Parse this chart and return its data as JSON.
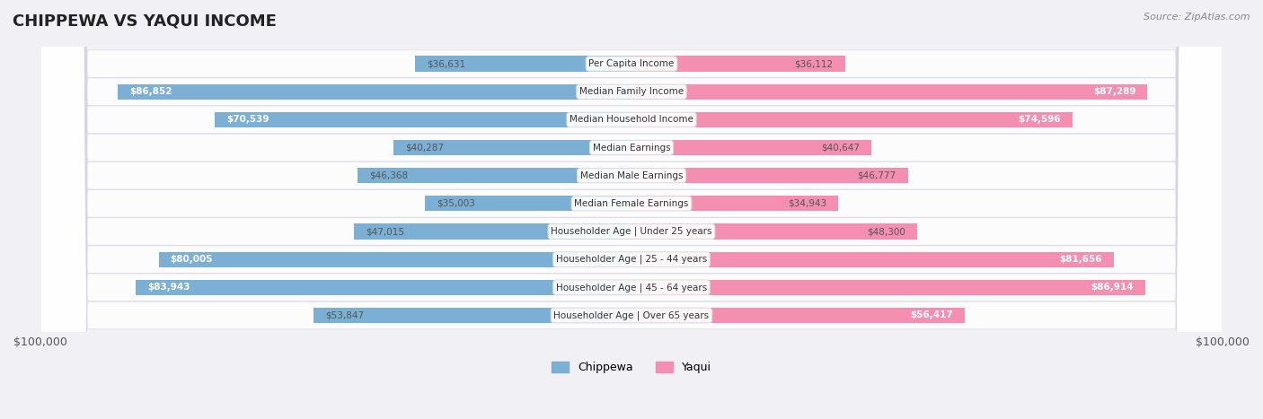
{
  "title": "CHIPPEWA VS YAQUI INCOME",
  "source": "Source: ZipAtlas.com",
  "categories": [
    "Per Capita Income",
    "Median Family Income",
    "Median Household Income",
    "Median Earnings",
    "Median Male Earnings",
    "Median Female Earnings",
    "Householder Age | Under 25 years",
    "Householder Age | 25 - 44 years",
    "Householder Age | 45 - 64 years",
    "Householder Age | Over 65 years"
  ],
  "chippewa_values": [
    36631,
    86852,
    70539,
    40287,
    46368,
    35003,
    47015,
    80005,
    83943,
    53847
  ],
  "yaqui_values": [
    36112,
    87289,
    74596,
    40647,
    46777,
    34943,
    48300,
    81656,
    86914,
    56417
  ],
  "chippewa_labels": [
    "$36,631",
    "$86,852",
    "$70,539",
    "$40,287",
    "$46,368",
    "$35,003",
    "$47,015",
    "$80,005",
    "$83,943",
    "$53,847"
  ],
  "yaqui_labels": [
    "$36,112",
    "$87,289",
    "$74,596",
    "$40,647",
    "$46,777",
    "$34,943",
    "$48,300",
    "$81,656",
    "$86,914",
    "$56,417"
  ],
  "chippewa_color": "#7bafd4",
  "chippewa_color_dark": "#5b9abf",
  "yaqui_color": "#f48fb1",
  "yaqui_color_dark": "#e91e8c",
  "max_val": 100000,
  "bg_color": "#f0f0f5",
  "row_bg_light": "#f7f7fa",
  "row_bg_dark": "#e8e8f0",
  "bar_height": 0.55,
  "legend_chippewa": "Chippewa",
  "legend_yaqui": "Yaqui"
}
